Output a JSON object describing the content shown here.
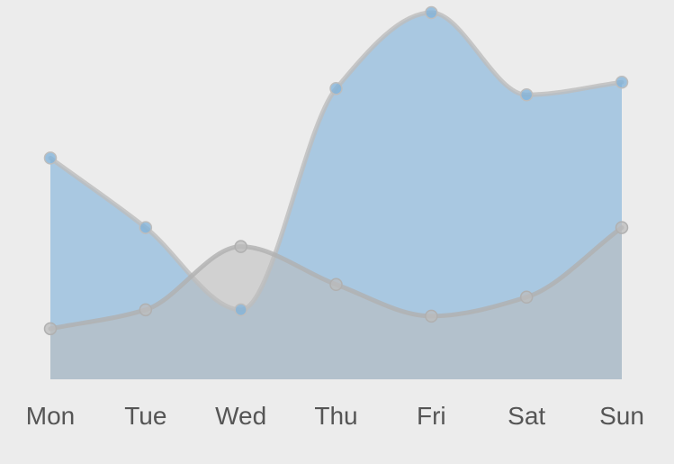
{
  "chart_data": {
    "type": "area",
    "categories": [
      "Mon",
      "Tue",
      "Wed",
      "Thu",
      "Fri",
      "Sat",
      "Sun"
    ],
    "ylim": [
      0,
      60
    ],
    "grid": false,
    "series": [
      {
        "values": [
          35,
          24,
          11,
          46,
          58,
          45,
          47
        ],
        "color": "#7fb1da",
        "line_color": "#bdbdbd"
      },
      {
        "values": [
          8,
          11,
          21,
          15,
          10,
          13,
          24
        ],
        "color": "#bcbcbc",
        "line_color": "#b0b0b0"
      }
    ]
  }
}
